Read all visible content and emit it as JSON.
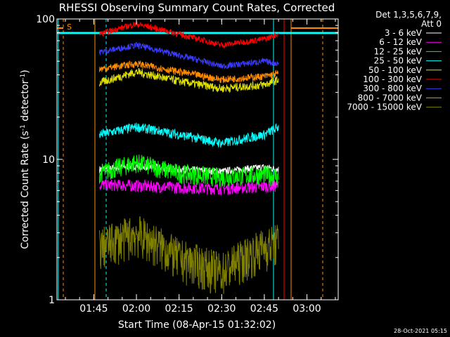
{
  "chart_data": {
    "type": "line",
    "title": "RHESSI Observing Summary Count Rates, Corrected",
    "xlabel": "Start Time (08-Apr-15 01:32:02)",
    "ylabel": "Corrected Count Rate (s⁻¹ detector⁻¹)",
    "ylabel_parts": {
      "main": "Corrected Count Rate (s",
      "sup1": "-1",
      "mid": " detector",
      "sup2": "-1",
      "end": ")"
    },
    "yscale": "log",
    "ylim": [
      1,
      100
    ],
    "y_ticks": [
      "1",
      "10",
      "100"
    ],
    "xlim": [
      "01:32:02",
      "03:11:00"
    ],
    "x_ticks": [
      "01:45",
      "02:00",
      "02:15",
      "02:30",
      "02:45",
      "03:00"
    ],
    "legend_header": [
      "Det 1,3,5,6,7,9,",
      "Att 0"
    ],
    "legend_position": "top-right, outside plot",
    "timestamp": "28-Oct-2021 05:15",
    "s_marker": "S",
    "series": [
      {
        "name": "3 - 6 keV",
        "color": "#ffffff",
        "x": [
          "01:47",
          "02:00",
          "02:15",
          "02:30",
          "02:45",
          "02:50"
        ],
        "y": [
          8.5,
          9,
          8.5,
          8.2,
          8.8,
          8.5
        ]
      },
      {
        "name": "6 - 12 keV",
        "color": "#ff00ff",
        "x": [
          "01:47",
          "02:00",
          "02:15",
          "02:30",
          "02:45",
          "02:50"
        ],
        "y": [
          6.6,
          6.5,
          6.3,
          6.2,
          6.4,
          6.5
        ]
      },
      {
        "name": "12 - 25 keV",
        "color": "#00ff00",
        "x": [
          "01:47",
          "02:00",
          "02:15",
          "02:30",
          "02:45",
          "02:50"
        ],
        "y": [
          8.0,
          9.5,
          8.0,
          7.5,
          7.8,
          7.5
        ]
      },
      {
        "name": "25 - 50 keV",
        "color": "#00ffff",
        "x": [
          "01:47",
          "02:00",
          "02:15",
          "02:30",
          "02:45",
          "02:50"
        ],
        "y": [
          15,
          17,
          15,
          13,
          15,
          17
        ]
      },
      {
        "name": "50 - 100 keV",
        "color": "#e0e000",
        "x": [
          "01:47",
          "02:00",
          "02:15",
          "02:30",
          "02:45",
          "02:50"
        ],
        "y": [
          35,
          42,
          36,
          32,
          34,
          37
        ]
      },
      {
        "name": "100 - 300 keV",
        "color": "#ff0000",
        "x": [
          "01:47",
          "02:00",
          "02:15",
          "02:30",
          "02:45",
          "02:50"
        ],
        "y": [
          78,
          92,
          78,
          65,
          72,
          78
        ]
      },
      {
        "name": "300 - 800 keV",
        "color": "#3a3aff",
        "x": [
          "01:47",
          "02:00",
          "02:15",
          "02:30",
          "02:45",
          "02:50"
        ],
        "y": [
          58,
          65,
          55,
          46,
          50,
          48
        ]
      },
      {
        "name": "800 - 7000 keV",
        "color": "#ff8c00",
        "x": [
          "01:47",
          "02:00",
          "02:15",
          "02:30",
          "02:45",
          "02:50"
        ],
        "y": [
          44,
          48,
          42,
          37,
          39,
          41
        ]
      },
      {
        "name": "7000 - 15000 keV",
        "color": "#808000",
        "x": [
          "01:47",
          "02:00",
          "02:15",
          "02:30",
          "02:45",
          "02:50"
        ],
        "y": [
          2.4,
          3.0,
          2.0,
          1.6,
          2.4,
          2.6
        ]
      }
    ]
  }
}
